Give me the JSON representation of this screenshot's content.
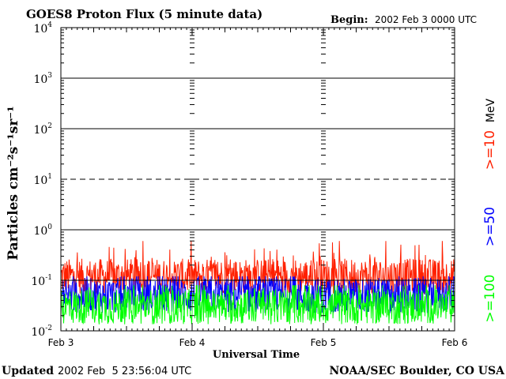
{
  "header": {
    "title": "GOES8 Proton Flux (5 minute data)",
    "begin_label": "Begin:",
    "begin_value": "2002 Feb 3 0000 UTC"
  },
  "footer": {
    "updated_label": "Updated",
    "updated_value": "2002 Feb  5 23:56:04 UTC",
    "credit": "NOAA/SEC Boulder, CO USA"
  },
  "colors": {
    "ge10": "#ff2000",
    "ge50": "#0000ff",
    "ge100": "#00ff00",
    "axis": "#000000"
  },
  "chart_data": {
    "type": "line",
    "title": "GOES8 Proton Flux (5 minute data)",
    "xlabel": "Universal Time",
    "ylabel": "Particles cm⁻²s⁻¹sr⁻¹",
    "yscale": "log",
    "ylim": [
      0.01,
      10000
    ],
    "xlim": [
      0,
      3
    ],
    "x_unit": "days since 2002 Feb 3 0000 UTC",
    "x_ticks": [
      {
        "x": 0,
        "label": "Feb 3"
      },
      {
        "x": 1,
        "label": "Feb 4"
      },
      {
        "x": 2,
        "label": "Feb 5"
      },
      {
        "x": 3,
        "label": "Feb 6"
      }
    ],
    "y_ticks": [
      {
        "exp": -2,
        "label": "10",
        "sup": "-2"
      },
      {
        "exp": -1,
        "label": "10",
        "sup": "-1"
      },
      {
        "exp": 0,
        "label": "10",
        "sup": "0"
      },
      {
        "exp": 1,
        "label": "10",
        "sup": "1"
      },
      {
        "exp": 2,
        "label": "10",
        "sup": "2"
      },
      {
        "exp": 3,
        "label": "10",
        "sup": "3"
      },
      {
        "exp": 4,
        "label": "10",
        "sup": "4"
      }
    ],
    "reference_lines": [
      {
        "y": 1,
        "style": "solid"
      },
      {
        "y": 10,
        "style": "dashed"
      },
      {
        "y": 100,
        "style": "solid"
      },
      {
        "y": 1000,
        "style": "solid"
      }
    ],
    "legend_unit": "MeV",
    "legend_placement": "right",
    "series": [
      {
        "name": ">=10",
        "color": "#ff2000",
        "baseline": 0.12,
        "min": 0.05,
        "max": 0.6
      },
      {
        "name": ">=50",
        "color": "#0000ff",
        "baseline": 0.05,
        "min": 0.02,
        "max": 0.12
      },
      {
        "name": ">=100",
        "color": "#00ff00",
        "baseline": 0.03,
        "min": 0.01,
        "max": 0.08
      }
    ]
  }
}
